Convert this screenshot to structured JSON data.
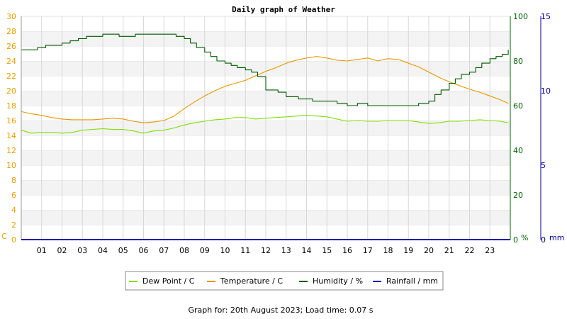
{
  "chart_data": {
    "type": "line",
    "title": "Daily graph of Weather",
    "footer": "Graph for: 20th August 2023; Load time: 0.07 s",
    "x_unit": "hour",
    "x_range": [
      0,
      24
    ],
    "x_ticks": [
      "01",
      "02",
      "03",
      "04",
      "05",
      "06",
      "07",
      "08",
      "09",
      "10",
      "11",
      "12",
      "13",
      "14",
      "15",
      "16",
      "17",
      "18",
      "19",
      "20",
      "21",
      "22",
      "23"
    ],
    "axes": {
      "temp": {
        "label": "C",
        "min": 0,
        "max": 30,
        "ticks": [
          "0",
          "2",
          "4",
          "6",
          "8",
          "10",
          "12",
          "14",
          "16",
          "18",
          "20",
          "22",
          "24",
          "26",
          "28",
          "30"
        ],
        "color": "#e8a000"
      },
      "hum": {
        "label": "%",
        "min": 0,
        "max": 100,
        "ticks": [
          "0",
          "20",
          "40",
          "60",
          "80",
          "100"
        ],
        "color": "#006400"
      },
      "rain": {
        "label": "mm",
        "min": 0,
        "max": 15,
        "ticks": [
          "0",
          "5",
          "10",
          "15"
        ],
        "color": "#000099"
      }
    },
    "grid": true,
    "legend_position": "bottom",
    "colors": {
      "dew": "#7fe000",
      "temp": "#e89600",
      "hum": "#005a00",
      "rain": "#0000aa"
    },
    "series": [
      {
        "name": "Dew Point / C",
        "axis": "temp",
        "style": "line",
        "x": [
          0,
          0.5,
          1,
          1.5,
          2,
          2.5,
          3,
          3.5,
          4,
          4.5,
          5,
          5.5,
          6,
          6.5,
          7,
          7.5,
          8,
          8.5,
          9,
          9.5,
          10,
          10.5,
          11,
          11.5,
          12,
          12.5,
          13,
          13.5,
          14,
          14.5,
          15,
          15.5,
          16,
          16.5,
          17,
          17.5,
          18,
          18.5,
          19,
          19.5,
          20,
          20.5,
          21,
          21.5,
          22,
          22.5,
          23,
          23.5,
          23.9
        ],
        "values": [
          14.7,
          14.3,
          14.4,
          14.4,
          14.3,
          14.4,
          14.7,
          14.8,
          14.9,
          14.8,
          14.8,
          14.6,
          14.3,
          14.6,
          14.7,
          15.0,
          15.4,
          15.7,
          15.9,
          16.1,
          16.2,
          16.4,
          16.4,
          16.2,
          16.3,
          16.4,
          16.5,
          16.6,
          16.7,
          16.6,
          16.5,
          16.2,
          15.9,
          16.0,
          15.9,
          15.9,
          16.0,
          16.0,
          16.0,
          15.8,
          15.6,
          15.7,
          15.9,
          15.9,
          16.0,
          16.1,
          16.0,
          15.9,
          15.7
        ]
      },
      {
        "name": "Temperature / C",
        "axis": "temp",
        "style": "line",
        "x": [
          0,
          0.5,
          1,
          1.5,
          2,
          2.5,
          3,
          3.5,
          4,
          4.5,
          5,
          5.5,
          6,
          6.5,
          7,
          7.5,
          8,
          8.5,
          9,
          9.5,
          10,
          10.5,
          11,
          11.5,
          12,
          12.5,
          13,
          13.5,
          14,
          14.5,
          15,
          15.5,
          16,
          16.5,
          17,
          17.5,
          18,
          18.5,
          19,
          19.5,
          20,
          20.5,
          21,
          21.5,
          22,
          22.5,
          23,
          23.5,
          23.9
        ],
        "values": [
          17.2,
          16.9,
          16.7,
          16.4,
          16.2,
          16.1,
          16.1,
          16.1,
          16.2,
          16.3,
          16.2,
          15.9,
          15.7,
          15.8,
          16.0,
          16.6,
          17.6,
          18.5,
          19.3,
          20.0,
          20.6,
          21.0,
          21.4,
          22.0,
          22.6,
          23.1,
          23.7,
          24.1,
          24.4,
          24.6,
          24.4,
          24.1,
          24.0,
          24.2,
          24.4,
          24.0,
          24.3,
          24.2,
          23.7,
          23.2,
          22.5,
          21.8,
          21.2,
          20.7,
          20.2,
          19.8,
          19.3,
          18.8,
          18.3
        ]
      },
      {
        "name": "Humidity / %",
        "axis": "hum",
        "style": "step",
        "x": [
          0,
          0.4,
          0.8,
          1.2,
          1.6,
          2,
          2.4,
          2.8,
          3.2,
          3.6,
          4,
          4.4,
          4.8,
          5.2,
          5.6,
          6,
          6.4,
          6.8,
          7.2,
          7.6,
          8,
          8.3,
          8.6,
          9,
          9.3,
          9.6,
          10,
          10.3,
          10.6,
          11,
          11.3,
          11.6,
          12,
          12.3,
          12.6,
          13,
          13.3,
          13.6,
          14,
          14.3,
          14.6,
          15,
          15.5,
          16,
          16.5,
          17,
          17.5,
          18,
          18.5,
          19,
          19.5,
          20,
          20.3,
          20.6,
          21,
          21.3,
          21.6,
          22,
          22.3,
          22.6,
          23,
          23.3,
          23.6,
          23.9
        ],
        "values": [
          85,
          85,
          86,
          87,
          87,
          88,
          89,
          90,
          91,
          91,
          92,
          92,
          91,
          91,
          92,
          92,
          92,
          92,
          92,
          91,
          90,
          88,
          86,
          84,
          82,
          80,
          79,
          78,
          77,
          76,
          75,
          73,
          67,
          67,
          66,
          64,
          64,
          63,
          63,
          62,
          62,
          62,
          61,
          60,
          61,
          60,
          60,
          60,
          60,
          60,
          61,
          62,
          65,
          67,
          70,
          72,
          74,
          75,
          77,
          79,
          81,
          82,
          83,
          85
        ]
      },
      {
        "name": "Rainfall / mm",
        "axis": "rain",
        "style": "line",
        "x": [
          0,
          24
        ],
        "values": [
          0,
          0
        ]
      }
    ]
  }
}
